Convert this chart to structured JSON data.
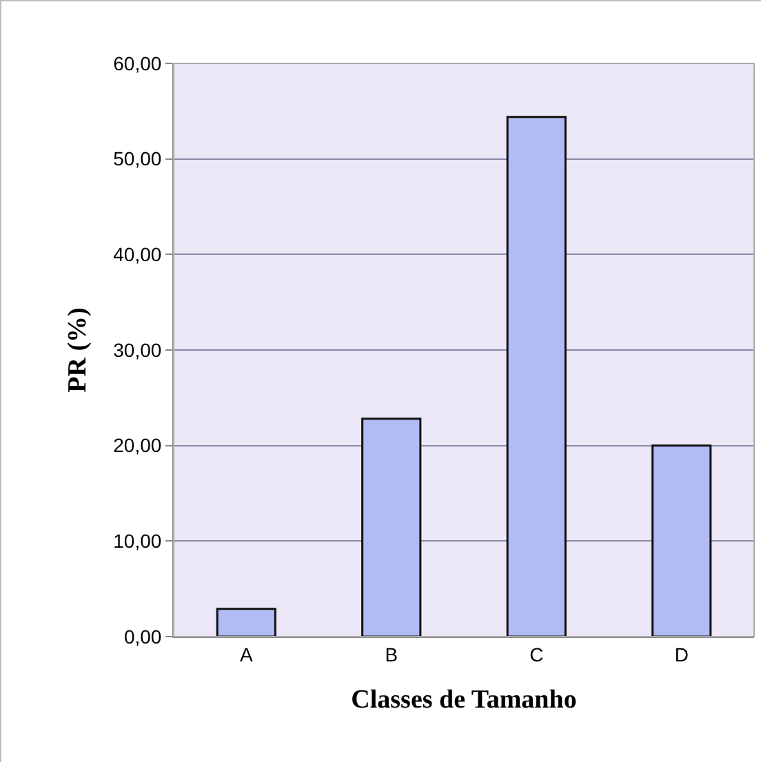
{
  "chart_data": {
    "type": "bar",
    "xlabel": "Classes de Tamanho",
    "ylabel": "PR (%)",
    "categories": [
      "A",
      "B",
      "C",
      "D"
    ],
    "values": [
      2.9,
      22.8,
      54.4,
      20.0
    ],
    "color": "#b3bbf5",
    "ylim": [
      0,
      60
    ],
    "yticks": [
      {
        "value": 0,
        "label": "0,00"
      },
      {
        "value": 10,
        "label": "10,00"
      },
      {
        "value": 20,
        "label": "20,00"
      },
      {
        "value": 30,
        "label": "30,00"
      },
      {
        "value": 40,
        "label": "40,00"
      },
      {
        "value": 50,
        "label": "50,00"
      },
      {
        "value": 60,
        "label": "60,00"
      }
    ],
    "grid": "y"
  }
}
